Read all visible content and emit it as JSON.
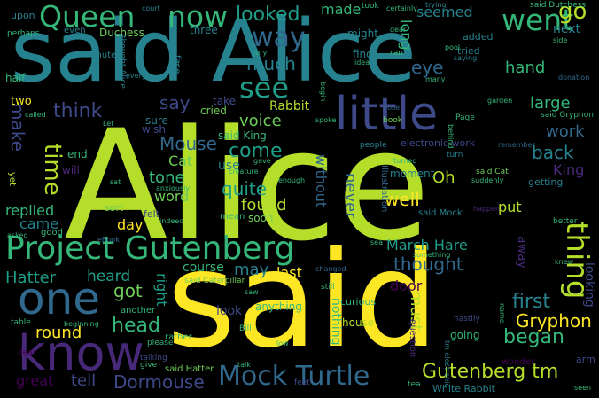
{
  "colors": {
    "background": "#000000",
    "palette": [
      "#fde725",
      "#b5de2b",
      "#6ece58",
      "#35b779",
      "#1f9e89",
      "#26828e",
      "#31688e",
      "#3e4989",
      "#482878",
      "#440154"
    ]
  },
  "words": [
    {
      "text": "Alice",
      "color": "#b5de2b"
    },
    {
      "text": "said",
      "color": "#fde725"
    },
    {
      "text": "said Alice",
      "color": "#26828e"
    },
    {
      "text": "Project Gutenberg",
      "color": "#35b779"
    },
    {
      "text": "know",
      "color": "#482878"
    },
    {
      "text": "one",
      "color": "#31688e"
    },
    {
      "text": "little",
      "color": "#3e4989"
    },
    {
      "text": "Queen",
      "color": "#35b779"
    },
    {
      "text": "now",
      "color": "#35b779"
    },
    {
      "text": "went",
      "color": "#35b779"
    },
    {
      "text": "go",
      "color": "#b5de2b"
    },
    {
      "text": "way",
      "color": "#31688e"
    },
    {
      "text": "see",
      "color": "#1f9e89"
    },
    {
      "text": "looked",
      "color": "#1f9e89"
    },
    {
      "text": "made",
      "color": "#35b779"
    },
    {
      "text": "much",
      "color": "#26828e"
    },
    {
      "text": "time",
      "color": "#b5de2b"
    },
    {
      "text": "say",
      "color": "#3e4989"
    },
    {
      "text": "think",
      "color": "#3e4989"
    },
    {
      "text": "Mouse",
      "color": "#31688e"
    },
    {
      "text": "Mock Turtle",
      "color": "#31688e"
    },
    {
      "text": "Gutenberg tm",
      "color": "#b5de2b"
    },
    {
      "text": "thing",
      "color": "#b5de2b"
    },
    {
      "text": "began",
      "color": "#35b779"
    },
    {
      "text": "first",
      "color": "#26828e"
    },
    {
      "text": "Gryphon",
      "color": "#fde725"
    },
    {
      "text": "March Hare",
      "color": "#1f9e89"
    },
    {
      "text": "thought",
      "color": "#31688e"
    },
    {
      "text": "head",
      "color": "#35b779"
    },
    {
      "text": "round",
      "color": "#fde725"
    },
    {
      "text": "Dormouse",
      "color": "#3e4989"
    },
    {
      "text": "great",
      "color": "#440154"
    },
    {
      "text": "tell",
      "color": "#3e4989"
    },
    {
      "text": "Hatter",
      "color": "#1f9e89"
    },
    {
      "text": "heard",
      "color": "#1f9e89"
    },
    {
      "text": "got",
      "color": "#6ece58"
    },
    {
      "text": "came",
      "color": "#26828e"
    },
    {
      "text": "day",
      "color": "#fde725"
    },
    {
      "text": "replied",
      "color": "#35b779"
    },
    {
      "text": "make",
      "color": "#3e4989"
    },
    {
      "text": "quite",
      "color": "#1f9e89"
    },
    {
      "text": "found",
      "color": "#b5de2b"
    },
    {
      "text": "come",
      "color": "#1f9e89"
    },
    {
      "text": "voice",
      "color": "#6ece58"
    },
    {
      "text": "Rabbit",
      "color": "#b5de2b"
    },
    {
      "text": "said King",
      "color": "#35b779"
    },
    {
      "text": "Cat",
      "color": "#6ece58"
    },
    {
      "text": "tone",
      "color": "#35b779"
    },
    {
      "text": "word",
      "color": "#6ece58"
    },
    {
      "text": "well",
      "color": "#fde725"
    },
    {
      "text": "Oh",
      "color": "#b5de2b"
    },
    {
      "text": "put",
      "color": "#b5de2b"
    },
    {
      "text": "back",
      "color": "#26828e"
    },
    {
      "text": "work",
      "color": "#31688e"
    },
    {
      "text": "King",
      "color": "#482878"
    },
    {
      "text": "hand",
      "color": "#35b779"
    },
    {
      "text": "large",
      "color": "#35b779"
    },
    {
      "text": "eye",
      "color": "#31688e"
    },
    {
      "text": "seemed",
      "color": "#26828e"
    },
    {
      "text": "long",
      "color": "#35b779"
    },
    {
      "text": "never",
      "color": "#31688e"
    },
    {
      "text": "last",
      "color": "#fde725"
    },
    {
      "text": "may",
      "color": "#26828e"
    },
    {
      "text": "course",
      "color": "#35b779"
    },
    {
      "text": "right",
      "color": "#1f9e89"
    },
    {
      "text": "look",
      "color": "#3e4989"
    },
    {
      "text": "door",
      "color": "#440154"
    },
    {
      "text": "must",
      "color": "#b5de2b"
    },
    {
      "text": "nothing",
      "color": "#35b779"
    },
    {
      "text": "looking",
      "color": "#3e4989"
    },
    {
      "text": "away",
      "color": "#482878"
    },
    {
      "text": "next",
      "color": "#26828e"
    },
    {
      "text": "said Dutchess",
      "color": "#35b779"
    },
    {
      "text": "upon",
      "color": "#26828e"
    },
    {
      "text": "even",
      "color": "#26828e"
    },
    {
      "text": "Duchess",
      "color": "#6ece58"
    },
    {
      "text": "three",
      "color": "#26828e"
    },
    {
      "text": "minute",
      "color": "#26828e"
    },
    {
      "text": "find",
      "color": "#26828e"
    },
    {
      "text": "might",
      "color": "#26828e"
    },
    {
      "text": "half",
      "color": "#35b779"
    },
    {
      "text": "two",
      "color": "#fde725"
    },
    {
      "text": "cried",
      "color": "#6ece58"
    },
    {
      "text": "take",
      "color": "#3e4989"
    },
    {
      "text": "sure",
      "color": "#26828e"
    },
    {
      "text": "end",
      "color": "#35b779"
    },
    {
      "text": "wish",
      "color": "#3e4989"
    },
    {
      "text": "use",
      "color": "#26828e"
    },
    {
      "text": "without",
      "color": "#31688e"
    },
    {
      "text": "curious",
      "color": "#35b779"
    },
    {
      "text": "electronic work",
      "color": "#3e4989"
    },
    {
      "text": "moment",
      "color": "#26828e"
    },
    {
      "text": "Illustration",
      "color": "#31688e"
    },
    {
      "text": "said Mock",
      "color": "#26828e"
    },
    {
      "text": "soon",
      "color": "#6ece58"
    },
    {
      "text": "mean",
      "color": "#35b779"
    },
    {
      "text": "yet",
      "color": "#b5de2b"
    },
    {
      "text": "will",
      "color": "#482878"
    },
    {
      "text": "sort",
      "color": "#6ece58"
    },
    {
      "text": "felt",
      "color": "#3e4989"
    },
    {
      "text": "anything",
      "color": "#35b779"
    },
    {
      "text": "house",
      "color": "#b5de2b"
    },
    {
      "text": "going",
      "color": "#35b779"
    },
    {
      "text": "question",
      "color": "#482878"
    },
    {
      "text": "another",
      "color": "#35b779"
    },
    {
      "text": "rather",
      "color": "#35b779"
    },
    {
      "text": "said Hatter",
      "color": "#6ece58"
    },
    {
      "text": "said Caterpillar",
      "color": "#6ece58"
    },
    {
      "text": "Bill",
      "color": "#35b779"
    },
    {
      "text": "still",
      "color": "#35b779"
    },
    {
      "text": "hastily",
      "color": "#3e4989"
    },
    {
      "text": "wonder",
      "color": "#440154"
    },
    {
      "text": "White Rabbit",
      "color": "#26828e"
    },
    {
      "text": "arm",
      "color": "#3e4989"
    },
    {
      "text": "good",
      "color": "#35b779"
    },
    {
      "text": "table",
      "color": "#35b779"
    },
    {
      "text": "beginning",
      "color": "#35b779"
    },
    {
      "text": "please",
      "color": "#35b779"
    },
    {
      "text": "talking",
      "color": "#3e4989"
    },
    {
      "text": "give",
      "color": "#35b779"
    },
    {
      "text": "feet",
      "color": "#3e4989"
    },
    {
      "text": "tea",
      "color": "#35b779"
    },
    {
      "text": "seen",
      "color": "#35b779"
    },
    {
      "text": "dear",
      "color": "#440154"
    },
    {
      "text": "perhaps",
      "color": "#35b779"
    },
    {
      "text": "face",
      "color": "#26828e"
    },
    {
      "text": "till",
      "color": "#26828e"
    },
    {
      "text": "idea",
      "color": "#35b779"
    },
    {
      "text": "many",
      "color": "#35b779"
    },
    {
      "text": "ran",
      "color": "#35b779"
    },
    {
      "text": "added",
      "color": "#26828e"
    },
    {
      "text": "tried",
      "color": "#26828e"
    },
    {
      "text": "saying",
      "color": "#26828e"
    },
    {
      "text": "court",
      "color": "#26828e"
    },
    {
      "text": "took",
      "color": "#35b779"
    },
    {
      "text": "trying",
      "color": "#26828e"
    },
    {
      "text": "side",
      "color": "#35b779"
    },
    {
      "text": "donation",
      "color": "#31688e"
    },
    {
      "text": "garden",
      "color": "#35b779"
    },
    {
      "text": "said Gryphon",
      "color": "#35b779"
    },
    {
      "text": "Page",
      "color": "#35b779"
    },
    {
      "text": "book",
      "color": "#6ece58"
    },
    {
      "text": "people",
      "color": "#26828e"
    },
    {
      "text": "turn",
      "color": "#26828e"
    },
    {
      "text": "remember",
      "color": "#31688e"
    },
    {
      "text": "said Cat",
      "color": "#6ece58"
    },
    {
      "text": "suddenly",
      "color": "#35b779"
    },
    {
      "text": "getting",
      "color": "#26828e"
    },
    {
      "text": "better",
      "color": "#35b779"
    },
    {
      "text": "happen",
      "color": "#482878"
    },
    {
      "text": "knew",
      "color": "#35b779"
    },
    {
      "text": "something",
      "color": "#35b779"
    },
    {
      "text": "changed",
      "color": "#31688e"
    },
    {
      "text": "saw",
      "color": "#35b779"
    },
    {
      "text": "sat",
      "color": "#35b779"
    },
    {
      "text": "anxiously",
      "color": "#35b779"
    },
    {
      "text": "gave",
      "color": "#35b779"
    },
    {
      "text": "creature",
      "color": "#35b779"
    },
    {
      "text": "enough",
      "color": "#35b779"
    },
    {
      "text": "indeed",
      "color": "#35b779"
    },
    {
      "text": "Let",
      "color": "#35b779"
    },
    {
      "text": "called",
      "color": "#35b779"
    },
    {
      "text": "asked",
      "color": "#35b779"
    },
    {
      "text": "eBook",
      "color": "#31688e"
    },
    {
      "text": "spoke",
      "color": "#35b779"
    },
    {
      "text": "low",
      "color": "#35b779"
    },
    {
      "text": "talk",
      "color": "#35b779"
    },
    {
      "text": "jury",
      "color": "#35b779"
    },
    {
      "text": "thought Alice",
      "color": "#26828e"
    },
    {
      "text": "every",
      "color": "#26828e"
    },
    {
      "text": "sea",
      "color": "#35b779"
    },
    {
      "text": "begin",
      "color": "#35b779"
    },
    {
      "text": "nose",
      "color": "#31688e"
    },
    {
      "text": "pool",
      "color": "#35b779"
    },
    {
      "text": "turned",
      "color": "#35b779"
    },
    {
      "text": "behind",
      "color": "#35b779"
    },
    {
      "text": "name",
      "color": "#35b779"
    },
    {
      "text": "tm electronic",
      "color": "#26828e"
    },
    {
      "text": "certainly",
      "color": "#35b779"
    },
    {
      "text": "dear",
      "color": "#35b779"
    }
  ]
}
